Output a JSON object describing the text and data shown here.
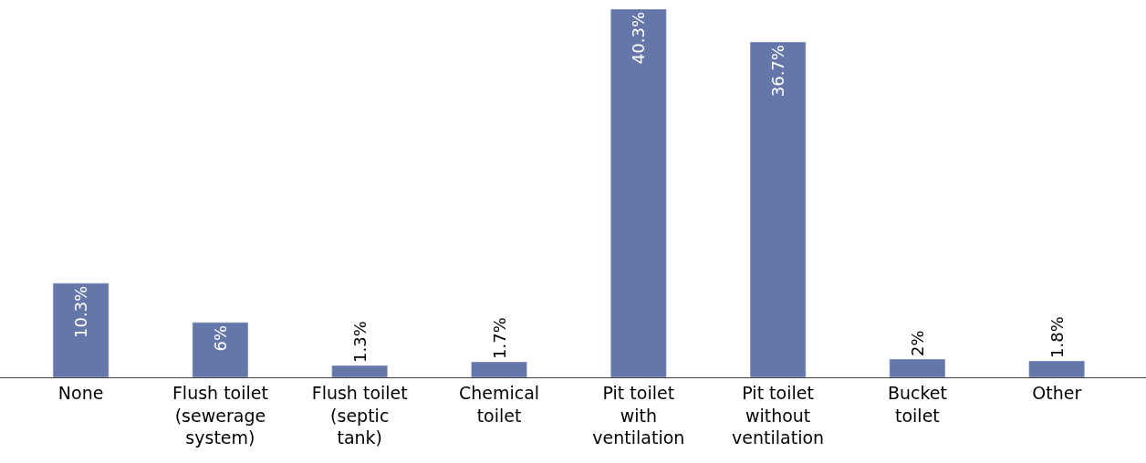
{
  "chart_data": {
    "type": "bar",
    "categories": [
      "None",
      "Flush toilet (sewerage system)",
      "Flush toilet (septic tank)",
      "Chemical toilet",
      "Pit toilet with ventilation",
      "Pit toilet without ventilation",
      "Bucket toilet",
      "Other"
    ],
    "values": [
      10.3,
      6,
      1.3,
      1.7,
      40.3,
      36.7,
      2,
      1.8
    ],
    "value_labels": [
      "10.3%",
      "6%",
      "1.3%",
      "1.7%",
      "40.3%",
      "36.7%",
      "2%",
      "1.8%"
    ],
    "color": "#6577a8",
    "ylim": [
      0,
      40.3
    ],
    "legend": false
  }
}
